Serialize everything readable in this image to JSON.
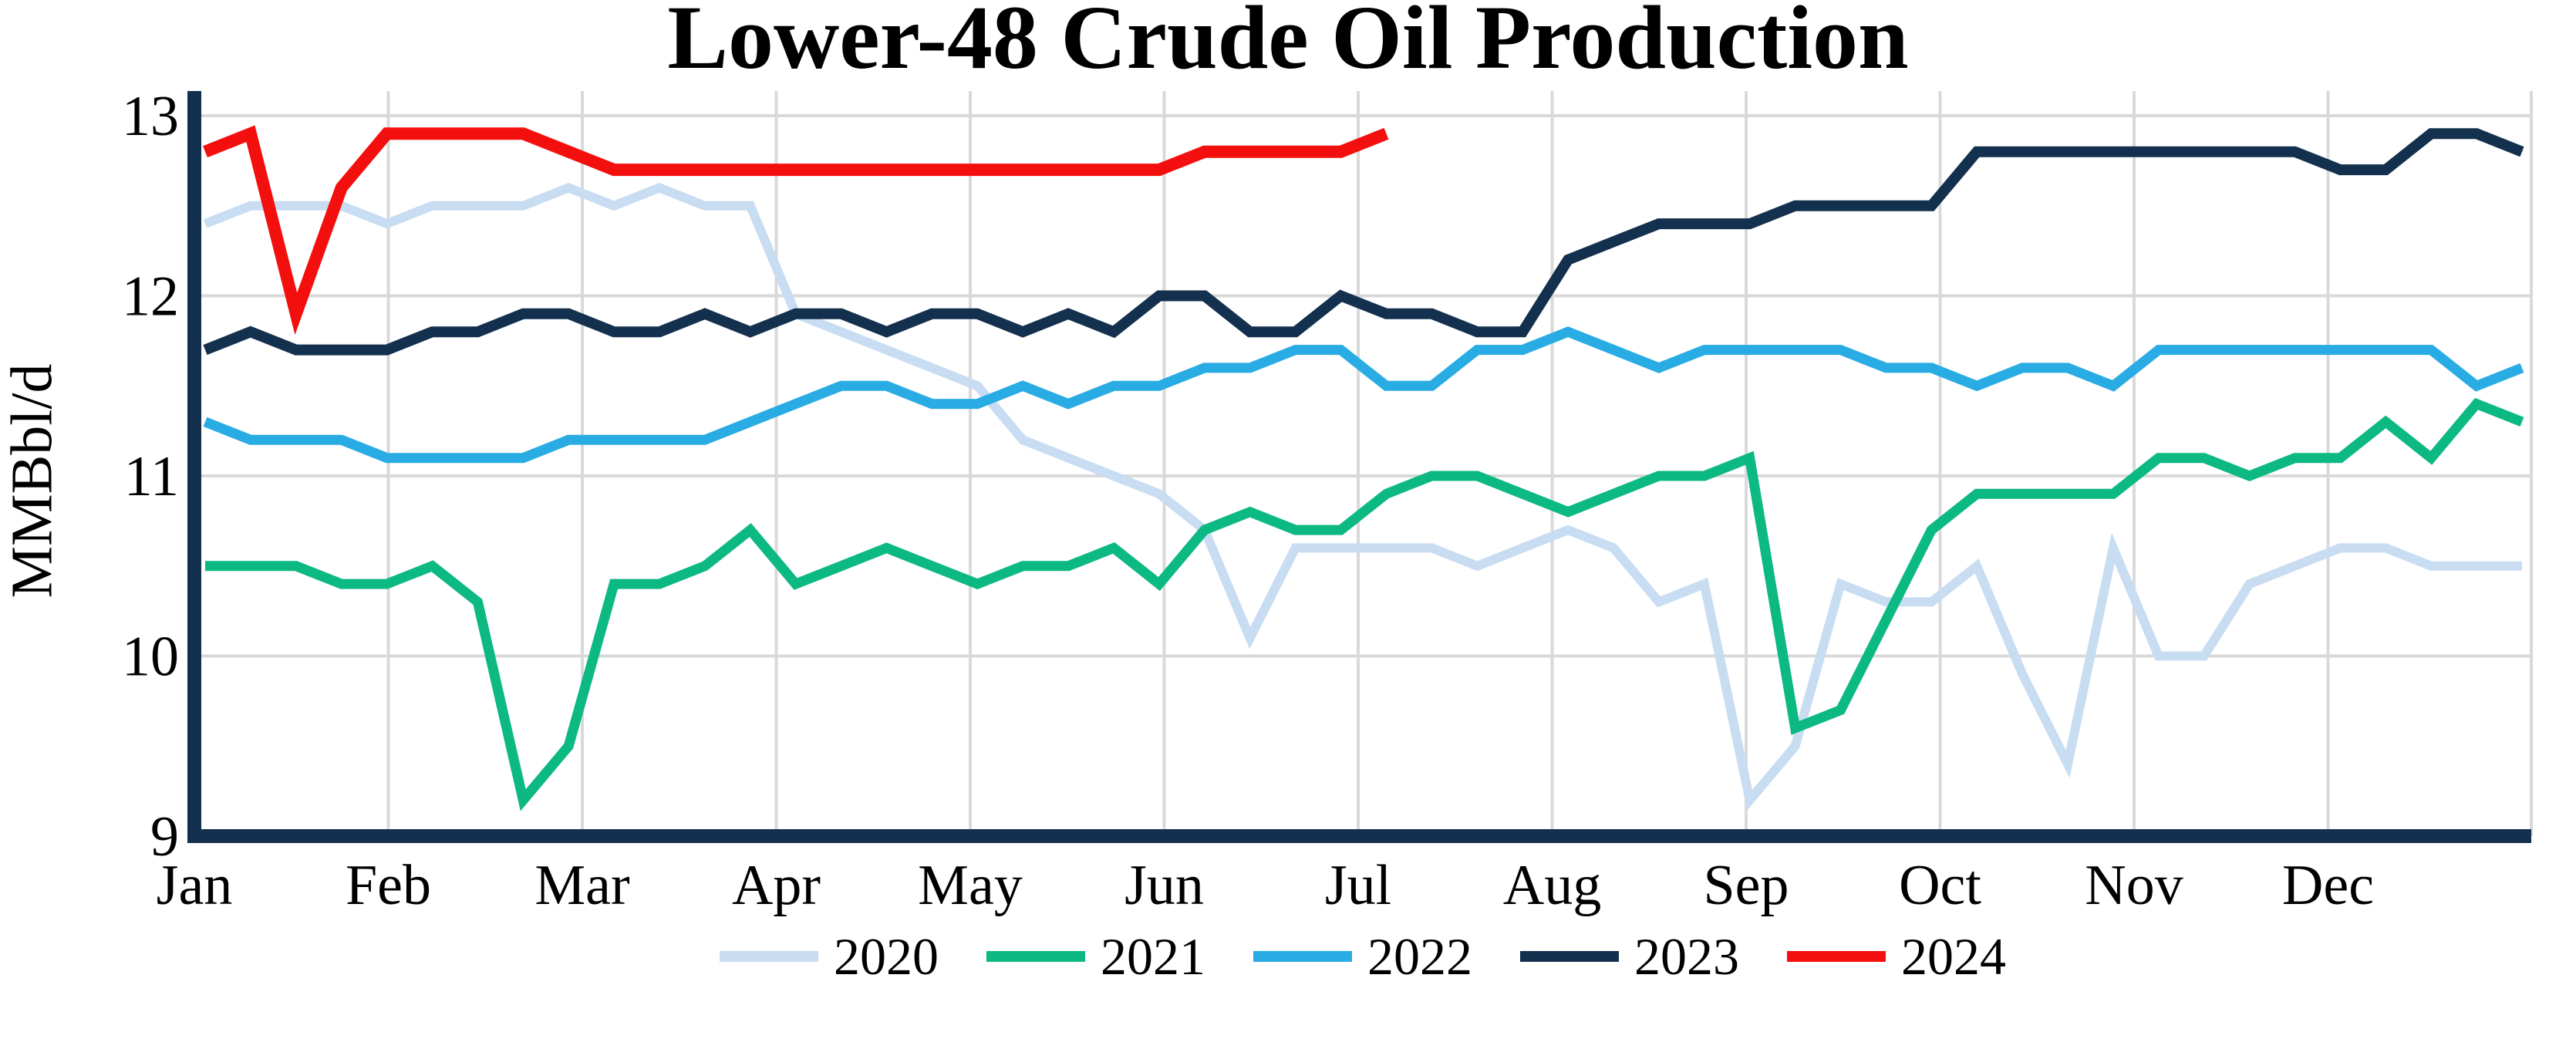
{
  "title": "Lower-48 Crude Oil Production",
  "y_axis": {
    "label": "MMBbl/d",
    "ticks": [
      13,
      12,
      11,
      10,
      9
    ],
    "min": 9,
    "max": 13
  },
  "x_axis": {
    "months": [
      "Jan",
      "Feb",
      "Mar",
      "Apr",
      "May",
      "Jun",
      "Jul",
      "Aug",
      "Sep",
      "Oct",
      "Nov",
      "Dec"
    ]
  },
  "legend": {
    "entries": [
      "2020",
      "2021",
      "2022",
      "2023",
      "2024"
    ],
    "colors": [
      "#c8dcf2",
      "#0db982",
      "#29ace4",
      "#14304f",
      "#f40f0f"
    ]
  },
  "colors": {
    "gridline": "#d9d9d9",
    "axis": "#14304f",
    "background": "#ffffff",
    "text": "#000000"
  },
  "chart_data": {
    "type": "line",
    "title": "Lower-48 Crude Oil Production",
    "xlabel": "",
    "ylabel": "MMBbl/d",
    "ylim": [
      9,
      13
    ],
    "grid": true,
    "legend_position": "bottom",
    "x_tick_labels": [
      "Jan",
      "Feb",
      "Mar",
      "Apr",
      "May",
      "Jun",
      "Jul",
      "Aug",
      "Sep",
      "Oct",
      "Nov",
      "Dec"
    ],
    "x_unit": "weekly data, Jan through Dec (2024 series partial, ends early July)",
    "series": [
      {
        "name": "2020",
        "color": "#c8dcf2",
        "line_width": 12,
        "values": [
          12.4,
          12.5,
          12.5,
          12.5,
          12.4,
          12.5,
          12.5,
          12.5,
          12.6,
          12.5,
          12.6,
          12.5,
          12.5,
          11.9,
          11.8,
          11.7,
          11.6,
          11.5,
          11.2,
          11.1,
          11.0,
          10.9,
          10.7,
          10.1,
          10.6,
          10.6,
          10.6,
          10.6,
          10.5,
          10.6,
          10.7,
          10.6,
          10.3,
          10.4,
          9.2,
          9.5,
          10.4,
          10.3,
          10.3,
          10.5,
          9.9,
          9.4,
          10.6,
          10.0,
          10.0,
          10.4,
          10.5,
          10.6,
          10.6,
          10.5,
          10.5,
          10.5
        ]
      },
      {
        "name": "2021",
        "color": "#0db982",
        "line_width": 13,
        "values": [
          10.5,
          10.5,
          10.5,
          10.4,
          10.4,
          10.5,
          10.3,
          9.2,
          9.5,
          10.4,
          10.4,
          10.5,
          10.7,
          10.4,
          10.5,
          10.6,
          10.5,
          10.4,
          10.5,
          10.5,
          10.6,
          10.4,
          10.7,
          10.8,
          10.7,
          10.7,
          10.9,
          11.0,
          11.0,
          10.9,
          10.8,
          10.9,
          11.0,
          11.0,
          11.1,
          9.6,
          9.7,
          10.2,
          10.7,
          10.9,
          10.9,
          10.9,
          10.9,
          11.1,
          11.1,
          11.0,
          11.1,
          11.1,
          11.3,
          11.1,
          11.4,
          11.3
        ]
      },
      {
        "name": "2022",
        "color": "#29ace4",
        "line_width": 13,
        "values": [
          11.3,
          11.2,
          11.2,
          11.2,
          11.1,
          11.1,
          11.1,
          11.1,
          11.2,
          11.2,
          11.2,
          11.2,
          11.3,
          11.4,
          11.5,
          11.5,
          11.4,
          11.4,
          11.5,
          11.4,
          11.5,
          11.5,
          11.6,
          11.6,
          11.7,
          11.7,
          11.5,
          11.5,
          11.7,
          11.7,
          11.8,
          11.7,
          11.6,
          11.7,
          11.7,
          11.7,
          11.7,
          11.6,
          11.6,
          11.5,
          11.6,
          11.6,
          11.5,
          11.7,
          11.7,
          11.7,
          11.7,
          11.7,
          11.7,
          11.7,
          11.5,
          11.6
        ]
      },
      {
        "name": "2023",
        "color": "#14304f",
        "line_width": 14,
        "values": [
          11.7,
          11.8,
          11.7,
          11.7,
          11.7,
          11.8,
          11.8,
          11.9,
          11.9,
          11.8,
          11.8,
          11.9,
          11.8,
          11.9,
          11.9,
          11.8,
          11.9,
          11.9,
          11.8,
          11.9,
          11.8,
          12.0,
          12.0,
          11.8,
          11.8,
          12.0,
          11.9,
          11.9,
          11.8,
          11.8,
          12.2,
          12.3,
          12.4,
          12.4,
          12.4,
          12.5,
          12.5,
          12.5,
          12.5,
          12.8,
          12.8,
          12.8,
          12.8,
          12.8,
          12.8,
          12.8,
          12.8,
          12.7,
          12.7,
          12.9,
          12.9,
          12.8
        ]
      },
      {
        "name": "2024",
        "color": "#f40f0f",
        "line_width": 16,
        "values": [
          12.8,
          12.9,
          11.9,
          12.6,
          12.9,
          12.9,
          12.9,
          12.9,
          12.8,
          12.7,
          12.7,
          12.7,
          12.7,
          12.7,
          12.7,
          12.7,
          12.7,
          12.7,
          12.7,
          12.7,
          12.7,
          12.7,
          12.8,
          12.8,
          12.8,
          12.8,
          12.9
        ]
      }
    ]
  }
}
